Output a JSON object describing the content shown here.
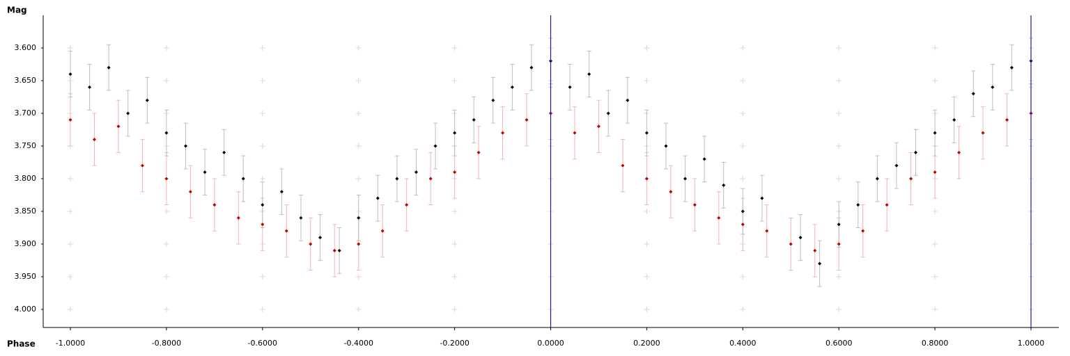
{
  "chart_data": {
    "type": "scatter",
    "ylabel": "Mag",
    "xlabel": "Phase",
    "xlim": [
      -1.0566,
      1.058
    ],
    "ylim": [
      3.55,
      4.0277
    ],
    "y_inverted": true,
    "xticks": [
      {
        "value": -1,
        "label": "-1.0000"
      },
      {
        "value": -0.8,
        "label": "-0.8000"
      },
      {
        "value": -0.6,
        "label": "-0.6000"
      },
      {
        "value": -0.4,
        "label": "-0.4000"
      },
      {
        "value": -0.2,
        "label": "-0.2000"
      },
      {
        "value": 0,
        "label": "0.0000"
      },
      {
        "value": 0.2,
        "label": "0.2000"
      },
      {
        "value": 0.4,
        "label": "0.4000"
      },
      {
        "value": 0.6,
        "label": "0.6000"
      },
      {
        "value": 0.8,
        "label": "0.8000"
      },
      {
        "value": 1,
        "label": "1.0000"
      }
    ],
    "yticks": [
      {
        "value": 3.6,
        "label": "3.600"
      },
      {
        "value": 3.65,
        "label": "3.650"
      },
      {
        "value": 3.7,
        "label": "3.700"
      },
      {
        "value": 3.75,
        "label": "3.750"
      },
      {
        "value": 3.8,
        "label": "3.800"
      },
      {
        "value": 3.85,
        "label": "3.850"
      },
      {
        "value": 3.9,
        "label": "3.900"
      },
      {
        "value": 3.95,
        "label": "3.950"
      },
      {
        "value": 4.0,
        "label": "4.000"
      }
    ],
    "grid": true,
    "grid_color": "#d8d8d8",
    "vlines": [
      0,
      1
    ],
    "vline_color": "#1a1aa0",
    "series": [
      {
        "color": "#c00000",
        "error_color": "#f2b4b4",
        "error": 0.04,
        "x": [
          -1.0,
          -0.95,
          -0.9,
          -0.85,
          -0.8,
          -0.75,
          -0.7,
          -0.65,
          -0.6,
          -0.55,
          -0.5,
          -0.45,
          -0.4,
          -0.35,
          -0.3,
          -0.25,
          -0.2,
          -0.15,
          -0.1,
          -0.05,
          0.0,
          0.05,
          0.1,
          0.15,
          0.2,
          0.25,
          0.3,
          0.35,
          0.4,
          0.45,
          0.5,
          0.55,
          0.6,
          0.65,
          0.7,
          0.75,
          0.8,
          0.85,
          0.9,
          0.95,
          1.0
        ],
        "values": [
          3.71,
          3.74,
          3.72,
          3.78,
          3.8,
          3.82,
          3.84,
          3.86,
          3.87,
          3.88,
          3.9,
          3.91,
          3.9,
          3.88,
          3.84,
          3.8,
          3.79,
          3.76,
          3.73,
          3.71,
          3.7,
          3.73,
          3.72,
          3.78,
          3.8,
          3.82,
          3.84,
          3.86,
          3.87,
          3.88,
          3.9,
          3.91,
          3.9,
          3.88,
          3.84,
          3.8,
          3.79,
          3.76,
          3.73,
          3.71,
          3.7
        ]
      },
      {
        "color": "#000000",
        "error_color": "#bdbdbd",
        "error": 0.035,
        "x": [
          -1.0,
          -0.96,
          -0.92,
          -0.88,
          -0.84,
          -0.8,
          -0.76,
          -0.72,
          -0.68,
          -0.64,
          -0.6,
          -0.56,
          -0.52,
          -0.48,
          -0.44,
          -0.4,
          -0.36,
          -0.32,
          -0.28,
          -0.24,
          -0.2,
          -0.16,
          -0.12,
          -0.08,
          -0.04,
          0.0,
          0.04,
          0.08,
          0.12,
          0.16,
          0.2,
          0.24,
          0.28,
          0.32,
          0.36,
          0.4,
          0.44,
          0.52,
          0.56,
          0.6,
          0.64,
          0.68,
          0.72,
          0.76,
          0.8,
          0.84,
          0.88,
          0.92,
          0.96,
          1.0
        ],
        "values": [
          3.64,
          3.66,
          3.63,
          3.7,
          3.68,
          3.73,
          3.75,
          3.79,
          3.76,
          3.8,
          3.84,
          3.82,
          3.86,
          3.89,
          3.91,
          3.86,
          3.83,
          3.8,
          3.79,
          3.75,
          3.73,
          3.71,
          3.68,
          3.66,
          3.63,
          3.62,
          3.66,
          3.64,
          3.7,
          3.68,
          3.73,
          3.75,
          3.8,
          3.77,
          3.81,
          3.85,
          3.83,
          3.89,
          3.93,
          3.87,
          3.84,
          3.8,
          3.78,
          3.76,
          3.73,
          3.71,
          3.67,
          3.66,
          3.63,
          3.62
        ]
      }
    ]
  }
}
